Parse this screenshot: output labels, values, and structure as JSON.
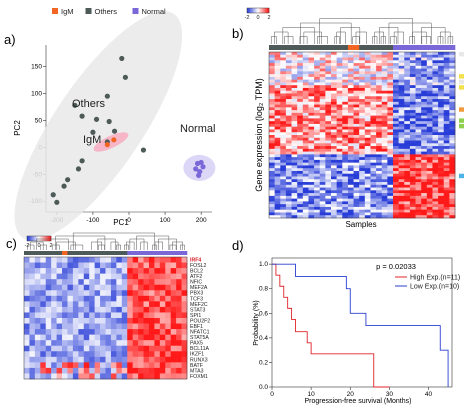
{
  "figure": {
    "panel_labels": {
      "a": "a)",
      "b": "b)",
      "c": "c)",
      "d": "d)"
    }
  },
  "chart_data": [
    {
      "panel": "a",
      "type": "scatter",
      "xlabel": "PC1",
      "ylabel": "PC2",
      "xlim": [
        -230,
        230
      ],
      "ylim": [
        -120,
        190
      ],
      "xticks": [
        -200,
        -100,
        0,
        100,
        200
      ],
      "yticks": [
        -100,
        -50,
        0,
        50,
        100,
        150
      ],
      "legend": {
        "placement": "top",
        "entries": [
          {
            "label": "IgM",
            "color": "#f26522"
          },
          {
            "label": "Others",
            "color": "#4d5a58"
          },
          {
            "label": "Normal",
            "color": "#7b68d8"
          }
        ]
      },
      "annotations": [
        "Others",
        "IgM",
        "Normal"
      ],
      "series": [
        {
          "name": "Others",
          "color": "#4d5a58",
          "points": [
            [
              -20,
              165
            ],
            [
              -10,
              130
            ],
            [
              -60,
              95
            ],
            [
              -150,
              78
            ],
            [
              -130,
              58
            ],
            [
              -90,
              52
            ],
            [
              -55,
              48
            ],
            [
              -40,
              30
            ],
            [
              -100,
              28
            ],
            [
              -60,
              10
            ],
            [
              40,
              -5
            ],
            [
              -130,
              -25
            ],
            [
              -140,
              -40
            ],
            [
              -170,
              -60
            ],
            [
              -180,
              -72
            ],
            [
              -210,
              -88
            ],
            [
              -200,
              -102
            ]
          ]
        },
        {
          "name": "IgM",
          "color": "#f26522",
          "points": [
            [
              -60,
              5
            ],
            [
              -42,
              14
            ]
          ]
        },
        {
          "name": "Normal",
          "color": "#7b68d8",
          "points": [
            [
              190,
              -30
            ],
            [
              200,
              -28
            ],
            [
              185,
              -40
            ],
            [
              196,
              -45
            ],
            [
              205,
              -36
            ],
            [
              193,
              -52
            ]
          ]
        }
      ]
    },
    {
      "panel": "b",
      "type": "heatmap",
      "colorbar": {
        "min": -2,
        "max": 2,
        "ticks": [
          "-2",
          "0",
          "2"
        ]
      },
      "xlabel": "Samples",
      "ylabel": "Gene expression (log₂ TPM)",
      "column_groups": [
        {
          "name": "Others",
          "color": "#4d5a58",
          "count": 14
        },
        {
          "name": "IgM",
          "color": "#f26522",
          "count": 2
        },
        {
          "name": "Others",
          "color": "#4d5a58",
          "count": 6
        },
        {
          "name": "Normal",
          "color": "#7b68d8",
          "count": 11
        }
      ],
      "row_blocks": [
        {
          "rows": 12,
          "pattern": "mixed-up"
        },
        {
          "rows": 25,
          "pattern": "tumor-up"
        },
        {
          "rows": 23,
          "pattern": "normal-up"
        }
      ]
    },
    {
      "panel": "c",
      "type": "heatmap",
      "colorbar": {
        "min": -2,
        "max": 2,
        "ticks": [
          "-2",
          "0",
          "2"
        ]
      },
      "row_labels": [
        "IRF4",
        "FOSL2",
        "BCL2",
        "ATF2",
        "NFIC",
        "MEF2A",
        "PBX3",
        "TCF3",
        "MEF2C",
        "STAT3",
        "SPI1",
        "POU2F2",
        "EBF1",
        "NFATC1",
        "STAT5A",
        "PAX5",
        "BCL11A",
        "IKZF1",
        "RUNX3",
        "BATF",
        "MTA3",
        "FOXM1"
      ],
      "highlight_row": "IRF4",
      "highlight_color": "#d61f26",
      "column_groups": [
        {
          "name": "Others",
          "color": "#4d5a58",
          "count": 7
        },
        {
          "name": "IgM",
          "color": "#f26522",
          "count": 1
        },
        {
          "name": "Others",
          "color": "#4d5a58",
          "count": 11
        },
        {
          "name": "Normal",
          "color": "#7b68d8",
          "count": 11
        }
      ]
    },
    {
      "panel": "d",
      "type": "line",
      "subtype": "kaplan-meier",
      "xlabel": "Progression-free survival (Months)",
      "ylabel": "Probability (%)",
      "xlim": [
        0,
        46
      ],
      "ylim": [
        0,
        1.05
      ],
      "xticks": [
        0,
        10,
        20,
        30,
        40
      ],
      "yticks": [
        0.0,
        0.2,
        0.4,
        0.6,
        0.8,
        1.0
      ],
      "annotation": "p = 0.02033",
      "legend": {
        "placement": "top-right"
      },
      "series": [
        {
          "name": "High Exp.(n=11)",
          "color": "#e0232b",
          "steps": [
            [
              0,
              1.0
            ],
            [
              1,
              0.91
            ],
            [
              2,
              0.82
            ],
            [
              3,
              0.73
            ],
            [
              4,
              0.64
            ],
            [
              5,
              0.55
            ],
            [
              6,
              0.45
            ],
            [
              9,
              0.36
            ],
            [
              10,
              0.27
            ],
            [
              26,
              0.0
            ]
          ],
          "end": 30
        },
        {
          "name": "Low Exp.(n=10)",
          "color": "#2b3fd0",
          "steps": [
            [
              0,
              1.0
            ],
            [
              6,
              0.9
            ],
            [
              19,
              0.8
            ],
            [
              20,
              0.6
            ],
            [
              24,
              0.5
            ],
            [
              43,
              0.3
            ],
            [
              45,
              0.0
            ]
          ],
          "end": 45
        }
      ]
    }
  ]
}
